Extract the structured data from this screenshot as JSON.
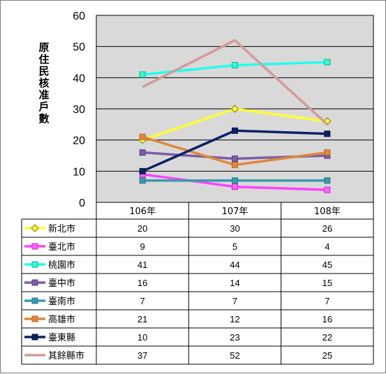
{
  "chart_data": {
    "type": "line",
    "title": "",
    "xlabel": "",
    "ylabel": "原住民核准戶數",
    "categories": [
      "106年",
      "107年",
      "108年"
    ],
    "ylim": [
      0,
      60
    ],
    "yticks": [
      0,
      10,
      20,
      30,
      40,
      50,
      60
    ],
    "grid": true,
    "legend_placement": "data-table",
    "series": [
      {
        "name": "新北市",
        "values": [
          20,
          30,
          26
        ],
        "color": "#ffff33",
        "marker": "diamond",
        "marker_fill": "#ffff33",
        "marker_stroke": "#808000"
      },
      {
        "name": "臺北市",
        "values": [
          9,
          5,
          4
        ],
        "color": "#ff44ff",
        "marker": "square",
        "marker_fill": "#ff66ff",
        "marker_stroke": "#cc22cc"
      },
      {
        "name": "桃園市",
        "values": [
          41,
          44,
          45
        ],
        "color": "#22ffee",
        "marker": "square",
        "marker_fill": "#33ffcc",
        "marker_stroke": "#00b3a0"
      },
      {
        "name": "臺中市",
        "values": [
          16,
          14,
          15
        ],
        "color": "#7b5ea7",
        "marker": "square",
        "marker_fill": "#7b5ea7",
        "marker_stroke": "#5a3f86"
      },
      {
        "name": "臺南市",
        "values": [
          7,
          7,
          7
        ],
        "color": "#3a9aad",
        "marker": "square",
        "marker_fill": "#3a9aad",
        "marker_stroke": "#267888"
      },
      {
        "name": "高雄市",
        "values": [
          21,
          12,
          16
        ],
        "color": "#e0883a",
        "marker": "square",
        "marker_fill": "#e0883a",
        "marker_stroke": "#b8661d"
      },
      {
        "name": "臺東縣",
        "values": [
          10,
          23,
          22
        ],
        "color": "#0b2266",
        "marker": "square",
        "marker_fill": "#0b2266",
        "marker_stroke": "#05123d"
      },
      {
        "name": "其餘縣市",
        "values": [
          37,
          52,
          25
        ],
        "color": "#d49a98",
        "marker": "none",
        "marker_fill": "#d49a98",
        "marker_stroke": "#d49a98"
      }
    ]
  }
}
